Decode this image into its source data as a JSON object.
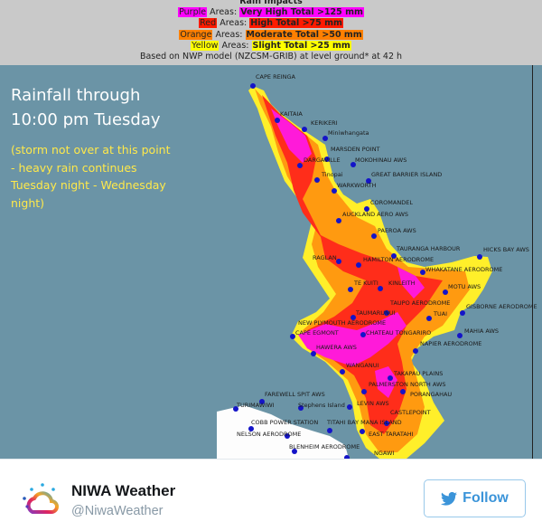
{
  "legend": {
    "title": "Rain Impacts",
    "rows": [
      {
        "color_word": "Purple",
        "areas": "Areas:",
        "desc": "Very High Total >125 mm",
        "color": "#ff00ff"
      },
      {
        "color_word": "Red",
        "areas": "Areas:",
        "desc": "High Total >75 mm",
        "color": "#ff1a00"
      },
      {
        "color_word": "Orange",
        "areas": "Areas:",
        "desc": "Moderate Total >50 mm",
        "color": "#ff8000"
      },
      {
        "color_word": "Yellow",
        "areas": "Areas:",
        "desc": "Slight Total >25 mm",
        "color": "#ffff00"
      }
    ],
    "model_note": "Based on NWP model (NZCSM-GRIB) at level ground* at 42 h"
  },
  "map": {
    "headline_line1": "Rainfall through",
    "headline_line2": "10:00 pm Tuesday",
    "note": "(storm not over at this point - heavy rain continues Tuesday night - Wednesday night)",
    "stations": [
      "CAPE REINGA",
      "KAITAIA",
      "KERIKERI",
      "Miniwhangata",
      "MARSDEN POINT",
      "DARGAVILLE",
      "MOKOHINAU AWS",
      "Tinopai",
      "GREAT BARRIER ISLAND",
      "WARKWORTH",
      "COROMANDEL",
      "AUCKLAND AERO AWS",
      "PAEROA AWS",
      "TAURANGA HARBOUR",
      "HICKS BAY AWS",
      "RAGLAN",
      "HAMILTON AERODROME",
      "WHAKATANE AERODROME",
      "TE KUITI",
      "KINLEITH",
      "MOTU AWS",
      "TAUPO AERODROME",
      "GISBORNE AERODROME",
      "TAUMARUNUI",
      "TUAI",
      "NEW PLYMOUTH AERODROME",
      "CHATEAU TONGARIRO",
      "CAPE EGMONT",
      "MAHIA AWS",
      "HAWERA AWS",
      "NAPIER AERODROME",
      "WANGANUI",
      "TAKAPAU PLAINS",
      "PALMERSTON NORTH AWS",
      "PORANGAHAU",
      "FAREWELL SPIT AWS",
      "TURIMAWIWI",
      "Stephens Island",
      "LEVIN AWS",
      "CASTLEPOINT",
      "COBB POWER STATION",
      "TITAHI BAY MANA ISLAND",
      "EAST TARATAHI",
      "NELSON AERODROME",
      "BLENHEIM AERODROME",
      "NGAWI"
    ]
  },
  "account": {
    "name": "NIWA Weather",
    "handle": "@NiwaWeather",
    "follow_label": "Follow"
  },
  "colors": {
    "twitter_blue": "#3b94d9",
    "sea": "#6b94a6"
  }
}
